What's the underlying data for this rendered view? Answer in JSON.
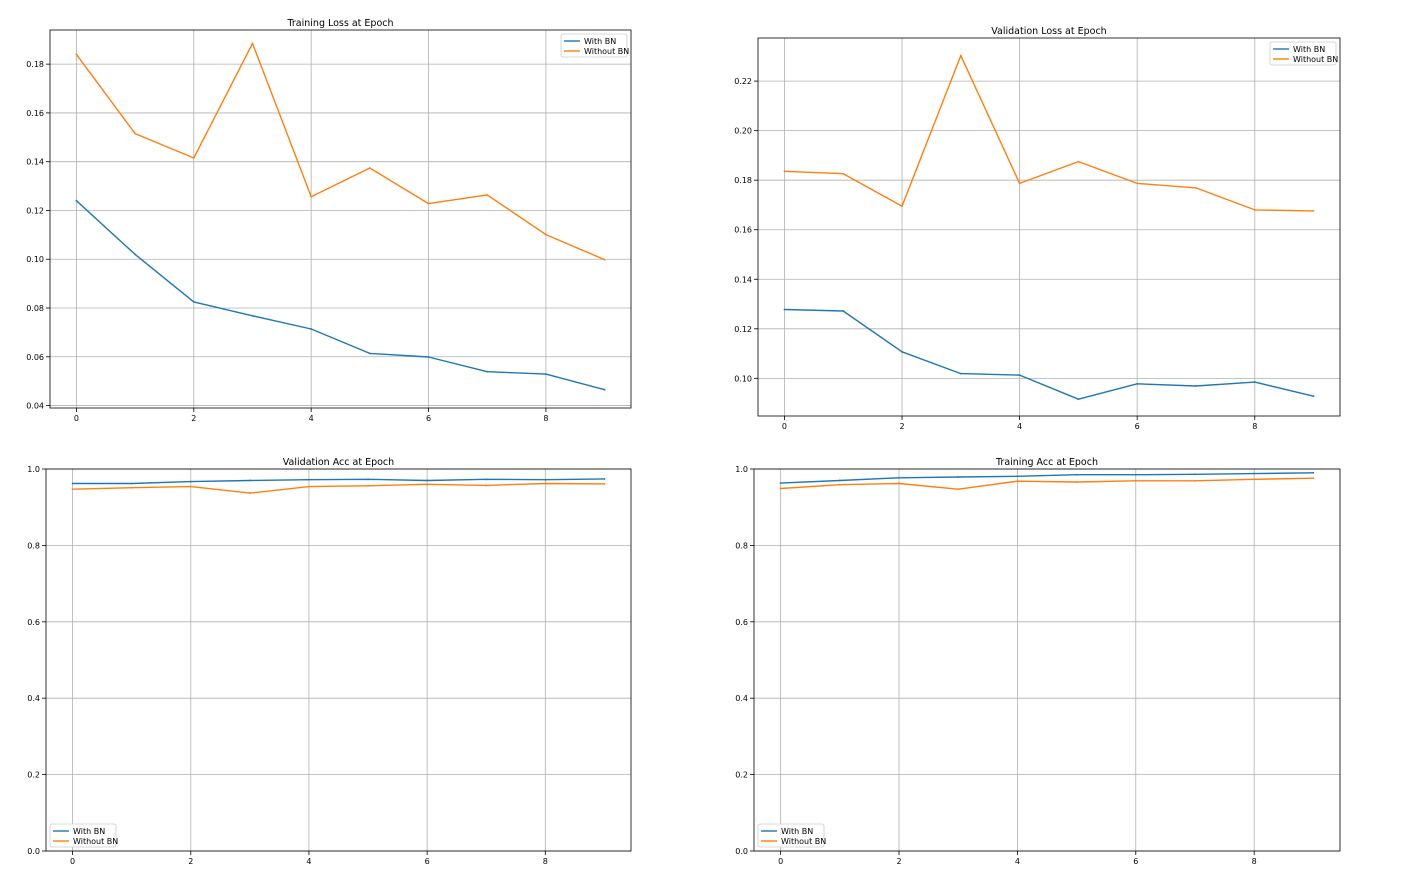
{
  "colors": {
    "with_bn": "#1f77b4",
    "without_bn": "#ff7f0e"
  },
  "chart_data": [
    {
      "type": "line",
      "title": "Training Loss at Epoch",
      "x": [
        0,
        1,
        2,
        3,
        4,
        5,
        6,
        7,
        8,
        9
      ],
      "xticks": [
        0,
        2,
        4,
        6,
        8
      ],
      "yticks": [
        0.04,
        0.06,
        0.08,
        0.1,
        0.12,
        0.14,
        0.16,
        0.18
      ],
      "ytick_labels": [
        "0.04",
        "0.06",
        "0.08",
        "0.10",
        "0.12",
        "0.14",
        "0.16",
        "0.18"
      ],
      "xlim": [
        -0.45,
        9.45
      ],
      "ylim": [
        0.039,
        0.194
      ],
      "grid": true,
      "legend": "upper right",
      "series": [
        {
          "name": "With BN",
          "color": "#1f77b4",
          "values": [
            0.124,
            0.102,
            0.0825,
            0.0768,
            0.0714,
            0.0614,
            0.0599,
            0.0539,
            0.0529,
            0.0465
          ]
        },
        {
          "name": "Without BN",
          "color": "#ff7f0e",
          "values": [
            0.184,
            0.1515,
            0.1415,
            0.1885,
            0.1256,
            0.1374,
            0.1228,
            0.1264,
            0.1101,
            0.0998
          ]
        }
      ]
    },
    {
      "type": "line",
      "title": "Validation Loss at Epoch",
      "x": [
        0,
        1,
        2,
        3,
        4,
        5,
        6,
        7,
        8,
        9
      ],
      "xticks": [
        0,
        2,
        4,
        6,
        8
      ],
      "yticks": [
        0.1,
        0.12,
        0.14,
        0.16,
        0.18,
        0.2,
        0.22
      ],
      "ytick_labels": [
        "0.10",
        "0.12",
        "0.14",
        "0.16",
        "0.18",
        "0.20",
        "0.22"
      ],
      "xlim": [
        -0.45,
        9.45
      ],
      "ylim": [
        0.0848,
        0.2374
      ],
      "grid": true,
      "legend": "upper right",
      "series": [
        {
          "name": "With BN",
          "color": "#1f77b4",
          "values": [
            0.1278,
            0.1272,
            0.1107,
            0.1019,
            0.1013,
            0.0916,
            0.0978,
            0.0969,
            0.0985,
            0.0928
          ]
        },
        {
          "name": "Without BN",
          "color": "#ff7f0e",
          "values": [
            0.1836,
            0.1826,
            0.1695,
            0.2303,
            0.1787,
            0.1875,
            0.1787,
            0.1769,
            0.168,
            0.1676
          ]
        }
      ]
    },
    {
      "type": "line",
      "title": "Validation Acc at Epoch",
      "x": [
        0,
        1,
        2,
        3,
        4,
        5,
        6,
        7,
        8,
        9
      ],
      "xticks": [
        0,
        2,
        4,
        6,
        8
      ],
      "yticks": [
        0.0,
        0.2,
        0.4,
        0.6,
        0.8,
        1.0
      ],
      "ytick_labels": [
        "0.0",
        "0.2",
        "0.4",
        "0.6",
        "0.8",
        "1.0"
      ],
      "xlim": [
        -0.45,
        9.45
      ],
      "ylim": [
        0.0,
        1.0
      ],
      "grid": true,
      "legend": "lower left",
      "series": [
        {
          "name": "With BN",
          "color": "#1f77b4",
          "values": [
            0.962,
            0.962,
            0.967,
            0.97,
            0.972,
            0.973,
            0.97,
            0.973,
            0.972,
            0.974
          ]
        },
        {
          "name": "Without BN",
          "color": "#ff7f0e",
          "values": [
            0.947,
            0.951,
            0.954,
            0.937,
            0.954,
            0.956,
            0.96,
            0.957,
            0.962,
            0.961
          ]
        }
      ]
    },
    {
      "type": "line",
      "title": "Training Acc at Epoch",
      "x": [
        0,
        1,
        2,
        3,
        4,
        5,
        6,
        7,
        8,
        9
      ],
      "xticks": [
        0,
        2,
        4,
        6,
        8
      ],
      "yticks": [
        0.0,
        0.2,
        0.4,
        0.6,
        0.8,
        1.0
      ],
      "ytick_labels": [
        "0.0",
        "0.2",
        "0.4",
        "0.6",
        "0.8",
        "1.0"
      ],
      "xlim": [
        -0.45,
        9.45
      ],
      "ylim": [
        0.0,
        1.0
      ],
      "grid": true,
      "legend": "lower left",
      "series": [
        {
          "name": "With BN",
          "color": "#1f77b4",
          "values": [
            0.963,
            0.97,
            0.977,
            0.979,
            0.981,
            0.985,
            0.985,
            0.986,
            0.988,
            0.99
          ]
        },
        {
          "name": "Without BN",
          "color": "#ff7f0e",
          "values": [
            0.949,
            0.959,
            0.962,
            0.947,
            0.968,
            0.966,
            0.969,
            0.969,
            0.973,
            0.976
          ]
        }
      ]
    }
  ]
}
